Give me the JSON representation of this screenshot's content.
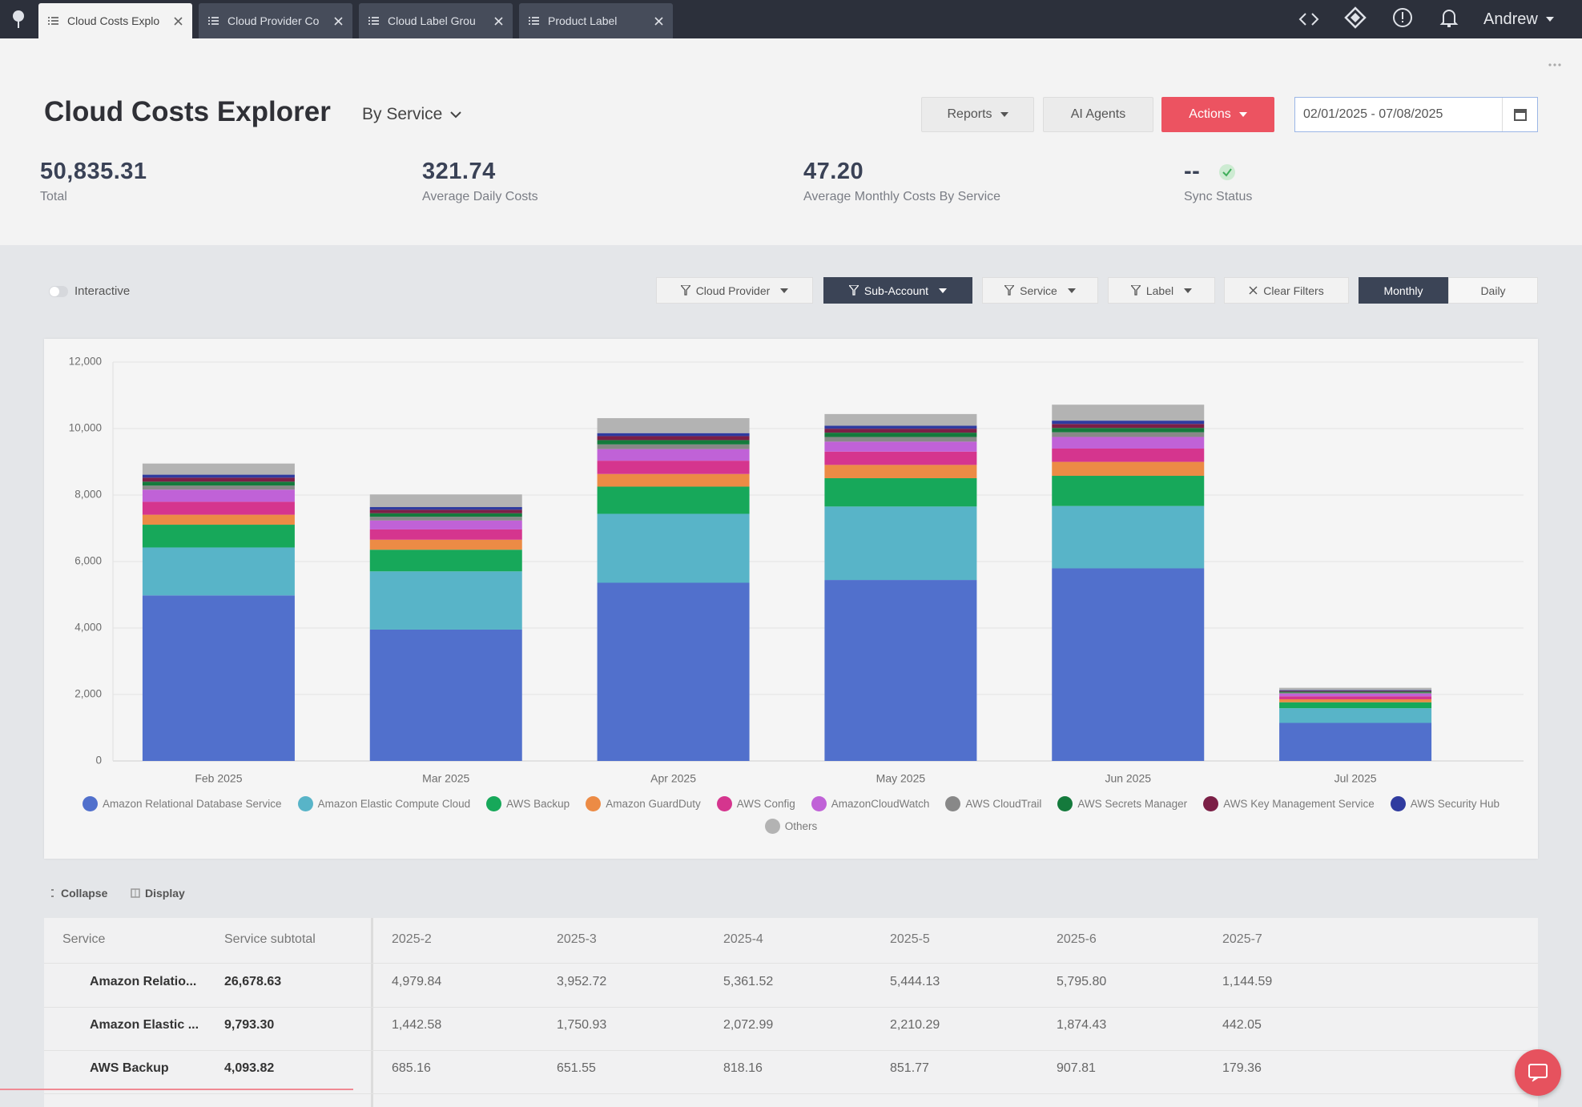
{
  "tabs": [
    "Cloud Costs Explo",
    "Cloud Provider Co",
    "Cloud Label Grou",
    "Product Label"
  ],
  "user": "Andrew",
  "header": {
    "title": "Cloud Costs Explorer",
    "view": "By Service",
    "buttons": [
      "Reports",
      "AI Agents",
      "Actions"
    ],
    "date_range": "02/01/2025 - 07/08/2025"
  },
  "kpis": [
    {
      "value": "50,835.31",
      "label": "Total"
    },
    {
      "value": "321.74",
      "label": "Average Daily Costs"
    },
    {
      "value": "47.20",
      "label": "Average Monthly Costs By Service"
    },
    {
      "value": "--",
      "label": "Sync Status"
    }
  ],
  "toolbar": {
    "toggle": "Interactive",
    "filters": [
      "Cloud Provider",
      "Sub-Account",
      "Service",
      "Label"
    ],
    "clear": "Clear Filters",
    "periods": [
      "Monthly",
      "Daily"
    ]
  },
  "chart_data": {
    "type": "bar",
    "stacked": true,
    "categories": [
      "Feb 2025",
      "Mar 2025",
      "Apr 2025",
      "May 2025",
      "Jun 2025",
      "Jul 2025"
    ],
    "series": [
      {
        "name": "Amazon Relational Database Service",
        "color": "#5170cc",
        "values": [
          4979.84,
          3952.72,
          5361.52,
          5444.13,
          5795.8,
          1144.59
        ]
      },
      {
        "name": "Amazon Elastic Compute Cloud",
        "color": "#58b4c8",
        "values": [
          1442.58,
          1750.93,
          2072.99,
          2210.29,
          1874.43,
          442.05
        ]
      },
      {
        "name": "AWS Backup",
        "color": "#17a85a",
        "values": [
          685.16,
          651.55,
          818.16,
          851.77,
          907.81,
          179.36
        ]
      },
      {
        "name": "Amazon GuardDuty",
        "color": "#ec8b45",
        "values": [
          300,
          300,
          380,
          400,
          420,
          90
        ]
      },
      {
        "name": "AWS Config",
        "color": "#d5358e",
        "values": [
          390,
          310,
          400,
          400,
          400,
          90
        ]
      },
      {
        "name": "AmazonCloudWatch",
        "color": "#c062d7",
        "values": [
          365,
          270,
          350,
          300,
          350,
          80
        ]
      },
      {
        "name": "AWS CloudTrail",
        "color": "#888888",
        "values": [
          120,
          110,
          140,
          140,
          140,
          30
        ]
      },
      {
        "name": "AWS Secrets Manager",
        "color": "#147a3c",
        "values": [
          120,
          108,
          130,
          130,
          130,
          30
        ]
      },
      {
        "name": "AWS Key Management Service",
        "color": "#7b1f46",
        "values": [
          120,
          105,
          120,
          120,
          120,
          25
        ]
      },
      {
        "name": "AWS Security Hub",
        "color": "#2f3b9f",
        "values": [
          90,
          80,
          90,
          90,
          100,
          20
        ]
      },
      {
        "name": "Others",
        "color": "#b3b3b3",
        "values": [
          335,
          380,
          450,
          350,
          480,
          70
        ]
      }
    ],
    "ylim": [
      0,
      12000
    ],
    "yticks": [
      0,
      {
        "value": 2000,
        "label": "2,000"
      },
      {
        "value": 4000,
        "label": "4,000"
      },
      {
        "value": 6000,
        "label": "6,000"
      },
      {
        "value": 8000,
        "label": "8,000"
      },
      {
        "value": 10000,
        "label": "10,000"
      },
      {
        "value": 12000,
        "label": "12,000"
      }
    ],
    "grid": true,
    "legend": "bottom"
  },
  "table_controls": [
    "Collapse",
    "Display"
  ],
  "table": {
    "columns": [
      "Service",
      "Service subtotal",
      "2025-2",
      "2025-3",
      "2025-4",
      "2025-5",
      "2025-6",
      "2025-7"
    ],
    "rows": [
      [
        "Amazon Relatio...",
        "26,678.63",
        "4,979.84",
        "3,952.72",
        "5,361.52",
        "5,444.13",
        "5,795.80",
        "1,144.59"
      ],
      [
        "Amazon Elastic ...",
        "9,793.30",
        "1,442.58",
        "1,750.93",
        "2,072.99",
        "2,210.29",
        "1,874.43",
        "442.05"
      ],
      [
        "AWS Backup",
        "4,093.82",
        "685.16",
        "651.55",
        "818.16",
        "851.77",
        "907.81",
        "179.36"
      ]
    ]
  }
}
